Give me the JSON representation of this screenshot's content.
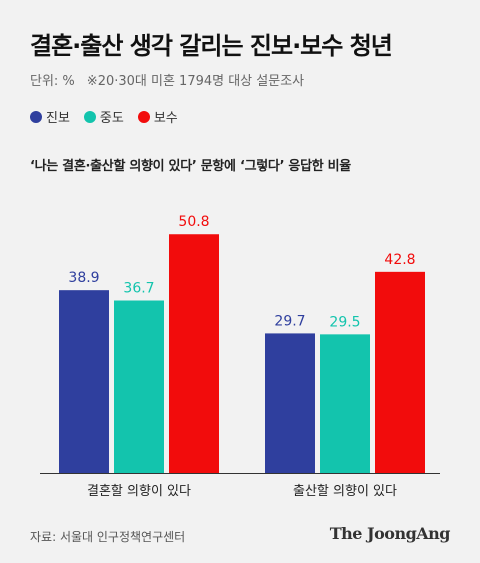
{
  "header": {
    "title": "결혼·출산 생각 갈리는 진보·보수 청년",
    "unit": "단위: %",
    "note": "※20·30대 미혼 1794명 대상 설문조사"
  },
  "colors": {
    "진보": "#2f3f9e",
    "중도": "#13c4ad",
    "보수": "#f20c0c"
  },
  "chart_data": {
    "type": "bar",
    "title": "‘나는 결혼·출산할 의향이 있다’ 문항에 ‘그렇다’ 응답한 비율",
    "categories": [
      "결혼할 의향이 있다",
      "출산할 의향이 있다"
    ],
    "series": [
      {
        "name": "진보",
        "values": [
          38.9,
          29.7
        ]
      },
      {
        "name": "중도",
        "values": [
          36.7,
          29.5
        ]
      },
      {
        "name": "보수",
        "values": [
          50.8,
          42.8
        ]
      }
    ],
    "ylim": [
      0,
      60
    ],
    "grid": false,
    "legend": "top-left"
  },
  "footer": {
    "source": "자료: 서울대 인구정책연구센터",
    "brand": "The JoongAng"
  }
}
